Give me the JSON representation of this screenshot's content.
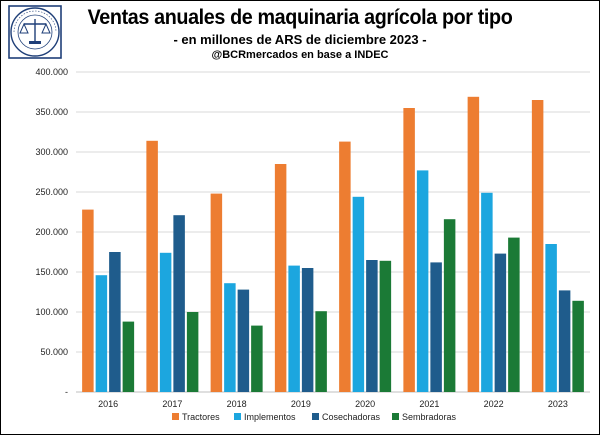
{
  "header": {
    "title": "Ventas anuales de maquinaria agrícola por tipo",
    "subtitle": "- en millones de ARS de diciembre 2023 -",
    "source": "@BCRmercados en base a INDEC"
  },
  "logo": {
    "icon": "scales-of-justice-seal",
    "text": "BOLSA DE COMERCIO DE ROSARIO"
  },
  "chart_data": {
    "type": "bar",
    "title": "Ventas anuales de maquinaria agrícola por tipo",
    "subtitle": "- en millones de ARS de diciembre 2023 -",
    "xlabel": "",
    "ylabel": "",
    "categories": [
      "2016",
      "2017",
      "2018",
      "2019",
      "2020",
      "2021",
      "2022",
      "2023"
    ],
    "series": [
      {
        "name": "Tractores",
        "color": "#ED7D31",
        "values": [
          228,
          314,
          248,
          285,
          313,
          355,
          369,
          365
        ]
      },
      {
        "name": "Implementos",
        "color": "#1CA6DF",
        "values": [
          146,
          174,
          136,
          158,
          244,
          277,
          249,
          185
        ]
      },
      {
        "name": "Cosechadoras",
        "color": "#1F5C8C",
        "values": [
          175,
          221,
          128,
          155,
          165,
          162,
          173,
          127
        ]
      },
      {
        "name": "Sembradoras",
        "color": "#1B7A36",
        "values": [
          88,
          100,
          83,
          101,
          164,
          216,
          193,
          114
        ]
      }
    ],
    "ylim": [
      0,
      400000
    ],
    "y_unit_multiplier": 1000,
    "yticks": [
      "-",
      "50.000",
      "100.000",
      "150.000",
      "200.000",
      "250.000",
      "300.000",
      "350.000",
      "400.000"
    ],
    "grid": true,
    "legend_position": "bottom"
  }
}
